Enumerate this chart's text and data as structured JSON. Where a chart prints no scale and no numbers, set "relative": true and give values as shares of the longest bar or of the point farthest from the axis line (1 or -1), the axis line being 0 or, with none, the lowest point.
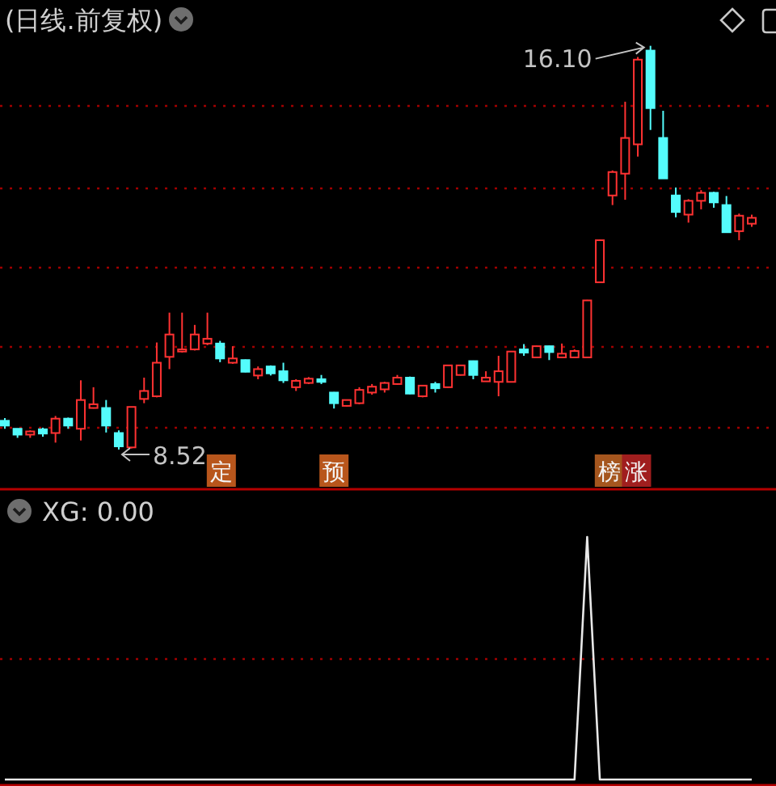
{
  "chart_data": [
    {
      "type": "candlestick",
      "title": "(日线.前复权)",
      "categories": [
        null,
        null,
        null,
        null,
        null,
        null,
        null,
        null,
        null,
        null,
        null,
        null,
        null,
        null,
        null,
        null,
        null,
        null,
        null,
        null,
        null,
        null,
        null,
        null,
        null,
        null,
        null,
        null,
        null,
        null,
        null,
        null,
        null,
        null,
        null,
        null,
        null,
        null,
        null,
        null,
        null,
        null,
        null,
        null,
        null,
        null,
        null,
        null,
        null,
        null,
        null,
        null,
        null,
        null,
        null,
        null,
        null,
        null,
        null,
        null
      ],
      "ohlc": [
        [
          9.06,
          9.11,
          8.91,
          8.97
        ],
        [
          8.91,
          8.91,
          8.74,
          8.8
        ],
        [
          8.8,
          8.88,
          8.74,
          8.86
        ],
        [
          8.9,
          8.93,
          8.76,
          8.82
        ],
        [
          8.83,
          9.15,
          8.65,
          9.1
        ],
        [
          9.1,
          9.12,
          8.91,
          8.97
        ],
        [
          8.91,
          9.82,
          8.69,
          9.45
        ],
        [
          9.3,
          9.69,
          9.29,
          9.37
        ],
        [
          9.3,
          9.45,
          8.84,
          8.97
        ],
        [
          8.83,
          8.88,
          8.52,
          8.58
        ],
        [
          8.56,
          9.32,
          8.54,
          9.32
        ],
        [
          9.47,
          9.87,
          9.39,
          9.62
        ],
        [
          9.52,
          10.53,
          9.5,
          10.15
        ],
        [
          10.26,
          11.09,
          10.03,
          10.68
        ],
        [
          10.36,
          11.09,
          10.34,
          10.4
        ],
        [
          10.4,
          10.86,
          10.38,
          10.68
        ],
        [
          10.51,
          11.09,
          10.48,
          10.6
        ],
        [
          10.51,
          10.56,
          10.16,
          10.23
        ],
        [
          10.15,
          10.46,
          10.13,
          10.23
        ],
        [
          10.2,
          10.21,
          9.97,
          9.98
        ],
        [
          9.91,
          10.08,
          9.84,
          10.03
        ],
        [
          10.08,
          10.1,
          9.91,
          9.95
        ],
        [
          9.99,
          10.15,
          9.77,
          9.82
        ],
        [
          9.69,
          9.84,
          9.62,
          9.81
        ],
        [
          9.77,
          9.88,
          9.75,
          9.85
        ],
        [
          9.84,
          9.92,
          9.75,
          9.79
        ],
        [
          9.59,
          9.6,
          9.29,
          9.39
        ],
        [
          9.34,
          9.46,
          9.33,
          9.45
        ],
        [
          9.39,
          9.69,
          9.37,
          9.64
        ],
        [
          9.59,
          9.75,
          9.55,
          9.7
        ],
        [
          9.65,
          9.79,
          9.59,
          9.77
        ],
        [
          9.75,
          9.92,
          9.74,
          9.87
        ],
        [
          9.87,
          9.89,
          9.56,
          9.57
        ],
        [
          9.52,
          9.73,
          9.5,
          9.72
        ],
        [
          9.75,
          9.79,
          9.59,
          9.67
        ],
        [
          9.69,
          10.11,
          9.68,
          10.1
        ],
        [
          9.92,
          10.11,
          9.91,
          10.1
        ],
        [
          10.18,
          10.19,
          9.84,
          9.92
        ],
        [
          9.8,
          9.99,
          9.8,
          9.87
        ],
        [
          9.79,
          10.28,
          9.52,
          9.99
        ],
        [
          9.79,
          10.37,
          9.78,
          10.36
        ],
        [
          10.4,
          10.5,
          10.28,
          10.34
        ],
        [
          10.25,
          10.47,
          10.24,
          10.46
        ],
        [
          10.46,
          10.47,
          10.2,
          10.35
        ],
        [
          10.25,
          10.51,
          10.24,
          10.32
        ],
        [
          10.25,
          10.4,
          10.24,
          10.37
        ],
        [
          10.25,
          11.33,
          10.24,
          11.32
        ],
        [
          11.66,
          12.46,
          11.65,
          12.45
        ],
        [
          13.29,
          13.76,
          13.11,
          13.73
        ],
        [
          13.7,
          15.05,
          13.21,
          14.37
        ],
        [
          14.25,
          15.89,
          14.02,
          15.84
        ],
        [
          16.01,
          16.1,
          14.52,
          14.93
        ],
        [
          14.37,
          14.88,
          13.61,
          13.61
        ],
        [
          13.29,
          13.44,
          12.88,
          12.98
        ],
        [
          12.93,
          13.22,
          12.78,
          13.19
        ],
        [
          13.19,
          13.39,
          13.03,
          13.34
        ],
        [
          13.34,
          13.36,
          13.06,
          13.16
        ],
        [
          13.11,
          13.28,
          12.6,
          12.6
        ],
        [
          12.62,
          12.95,
          12.45,
          12.91
        ],
        [
          12.76,
          12.93,
          12.7,
          12.87
        ]
      ],
      "colors": [
        "#54fcfc",
        "#54fcfc",
        "#ff3232",
        "#54fcfc",
        "#ff3232",
        "#54fcfc",
        "#ff3232",
        "#ff3232",
        "#54fcfc",
        "#54fcfc",
        "#ff3232",
        "#ff3232",
        "#ff3232",
        "#ff3232",
        "#ff3232",
        "#ff3232",
        "#ff3232",
        "#54fcfc",
        "#ff3232",
        "#54fcfc",
        "#ff3232",
        "#54fcfc",
        "#54fcfc",
        "#ff3232",
        "#ff3232",
        "#54fcfc",
        "#54fcfc",
        "#ff3232",
        "#ff3232",
        "#ff3232",
        "#ff3232",
        "#ff3232",
        "#54fcfc",
        "#ff3232",
        "#54fcfc",
        "#ff3232",
        "#ff3232",
        "#54fcfc",
        "#ff3232",
        "#ff3232",
        "#ff3232",
        "#54fcfc",
        "#ff3232",
        "#54fcfc",
        "#ff3232",
        "#ff3232",
        "#ff3232",
        "#ff3232",
        "#ff3232",
        "#ff3232",
        "#ff3232",
        "#54fcfc",
        "#54fcfc",
        "#54fcfc",
        "#ff3232",
        "#ff3232",
        "#54fcfc",
        "#54fcfc",
        "#ff3232",
        "#ff3232"
      ],
      "ylim": [
        7.79,
        16.96
      ],
      "yticks": [
        {
          "value": 8.95,
          "label": null
        },
        {
          "value": 10.45,
          "label": null
        },
        {
          "value": 11.95,
          "label": null
        },
        {
          "value": 13.45,
          "label": null
        },
        {
          "value": 15.0,
          "label": null
        }
      ],
      "grid": "y",
      "annotations": [
        "16.10",
        "8.52",
        "定",
        "预",
        "榜",
        "涨"
      ]
    },
    {
      "type": "line",
      "title": "XG: 0.00",
      "relative": true,
      "categories": [
        null,
        null,
        null,
        null,
        null,
        null,
        null,
        null,
        null,
        null,
        null,
        null,
        null,
        null,
        null,
        null,
        null,
        null,
        null,
        null,
        null,
        null,
        null,
        null,
        null,
        null,
        null,
        null,
        null,
        null,
        null,
        null,
        null,
        null,
        null,
        null,
        null,
        null,
        null,
        null,
        null,
        null,
        null,
        null,
        null,
        null,
        null,
        null,
        null,
        null,
        null,
        null,
        null,
        null,
        null,
        null,
        null,
        null,
        null,
        null
      ],
      "values": [
        0,
        0,
        0,
        0,
        0,
        0,
        0,
        0,
        0,
        0,
        0,
        0,
        0,
        0,
        0,
        0,
        0,
        0,
        0,
        0,
        0,
        0,
        0,
        0,
        0,
        0,
        0,
        0,
        0,
        0,
        0,
        0,
        0,
        0,
        0,
        0,
        0,
        0,
        0,
        0,
        0,
        0,
        0,
        0,
        0,
        0,
        1,
        0,
        0,
        0,
        0,
        0,
        0,
        0,
        0,
        0,
        0,
        0,
        0,
        0
      ],
      "color": "#e8e8e8",
      "ref_lines": [
        {
          "axis": "y",
          "value": 0.5,
          "color": "#a00000",
          "line_style": "dotted"
        }
      ]
    }
  ]
}
